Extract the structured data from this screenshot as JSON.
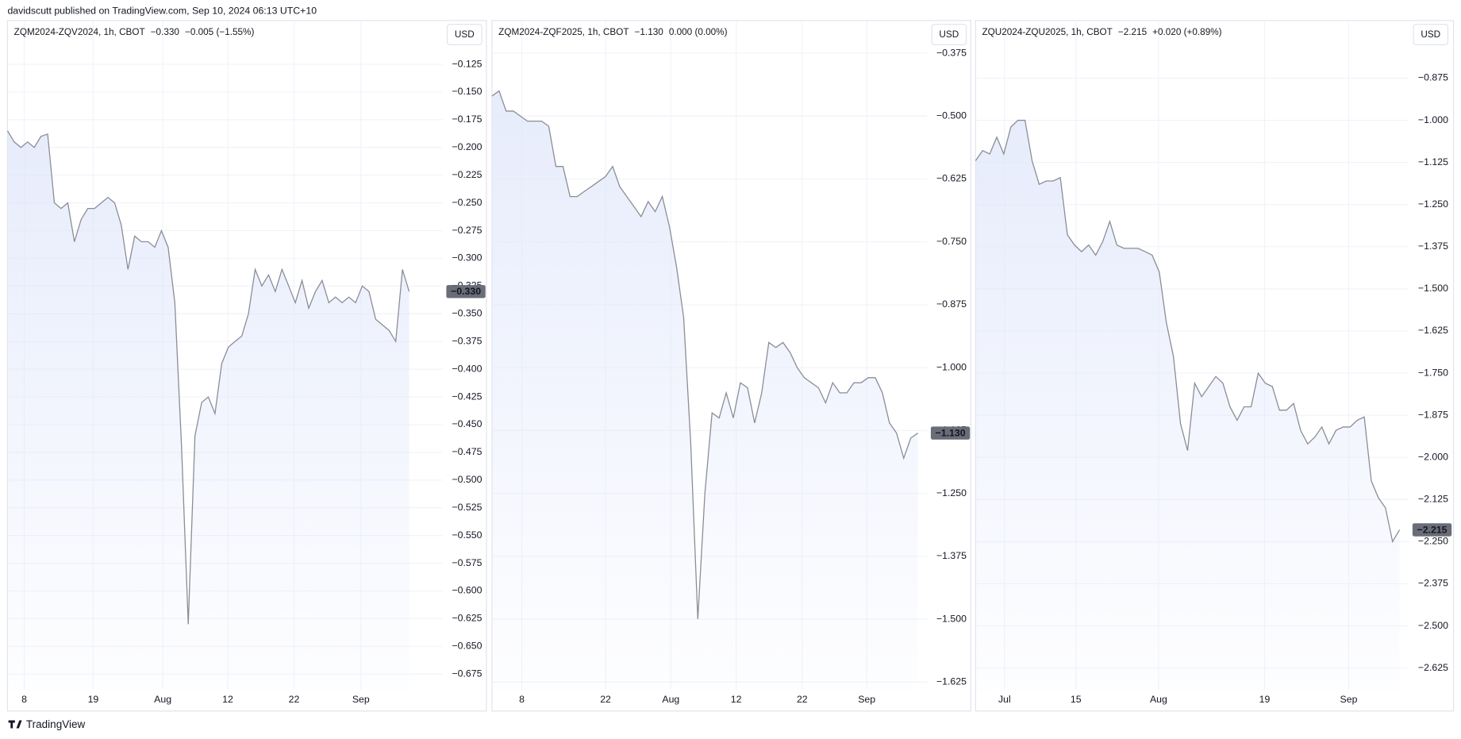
{
  "header": "davidscutt published on TradingView.com, Sep 10, 2024 06:13 UTC+10",
  "footer": "TradingView",
  "chart_data": [
    {
      "type": "area",
      "title": "ZQM2024-ZQV2024, 1h, CBOT",
      "legend_price": "−0.330",
      "legend_change": "−0.005 (−1.55%)",
      "currency": "USD",
      "color": "#8a8d96",
      "fill_color": "#dfe6fb",
      "grid": true,
      "price_badge": {
        "value": -0.33,
        "label": "−0.330"
      },
      "xlim": [
        0,
        65
      ],
      "xticks": [
        {
          "value": 2.5,
          "label": "8"
        },
        {
          "value": 12.8,
          "label": "19"
        },
        {
          "value": 23.2,
          "label": "Aug"
        },
        {
          "value": 32.9,
          "label": "12"
        },
        {
          "value": 42.8,
          "label": "22"
        },
        {
          "value": 52.8,
          "label": "Sep"
        }
      ],
      "ylim": [
        -0.689,
        -0.0855
      ],
      "yticks": [
        {
          "value": -0.125,
          "label": "−0.125"
        },
        {
          "value": -0.15,
          "label": "−0.150"
        },
        {
          "value": -0.175,
          "label": "−0.175"
        },
        {
          "value": -0.2,
          "label": "−0.200"
        },
        {
          "value": -0.225,
          "label": "−0.225"
        },
        {
          "value": -0.25,
          "label": "−0.250"
        },
        {
          "value": -0.275,
          "label": "−0.275"
        },
        {
          "value": -0.3,
          "label": "−0.300"
        },
        {
          "value": -0.325,
          "label": "−0.325"
        },
        {
          "value": -0.35,
          "label": "−0.350"
        },
        {
          "value": -0.375,
          "label": "−0.375"
        },
        {
          "value": -0.4,
          "label": "−0.400"
        },
        {
          "value": -0.425,
          "label": "−0.425"
        },
        {
          "value": -0.45,
          "label": "−0.450"
        },
        {
          "value": -0.475,
          "label": "−0.475"
        },
        {
          "value": -0.5,
          "label": "−0.500"
        },
        {
          "value": -0.525,
          "label": "−0.525"
        },
        {
          "value": -0.55,
          "label": "−0.550"
        },
        {
          "value": -0.575,
          "label": "−0.575"
        },
        {
          "value": -0.6,
          "label": "−0.600"
        },
        {
          "value": -0.625,
          "label": "−0.625"
        },
        {
          "value": -0.65,
          "label": "−0.650"
        },
        {
          "value": -0.675,
          "label": "−0.675"
        }
      ],
      "values": [
        -0.185,
        -0.195,
        -0.2,
        -0.195,
        -0.2,
        -0.19,
        -0.188,
        -0.25,
        -0.255,
        -0.25,
        -0.285,
        -0.265,
        -0.255,
        -0.255,
        -0.25,
        -0.245,
        -0.25,
        -0.27,
        -0.31,
        -0.28,
        -0.285,
        -0.285,
        -0.29,
        -0.275,
        -0.29,
        -0.34,
        -0.47,
        -0.63,
        -0.46,
        -0.43,
        -0.425,
        -0.44,
        -0.395,
        -0.38,
        -0.375,
        -0.37,
        -0.35,
        -0.31,
        -0.325,
        -0.315,
        -0.33,
        -0.31,
        -0.325,
        -0.34,
        -0.32,
        -0.345,
        -0.33,
        -0.32,
        -0.34,
        -0.335,
        -0.34,
        -0.335,
        -0.34,
        -0.325,
        -0.33,
        -0.355,
        -0.36,
        -0.365,
        -0.375,
        -0.31,
        -0.33
      ]
    },
    {
      "type": "area",
      "title": "ZQM2024-ZQF2025, 1h, CBOT",
      "legend_price": "−1.130",
      "legend_change": "0.000 (0.00%)",
      "currency": "USD",
      "color": "#8a8d96",
      "fill_color": "#dfe6fb",
      "grid": true,
      "price_badge": {
        "value": -1.13,
        "label": "−1.130"
      },
      "xlim": [
        0,
        61.3
      ],
      "xticks": [
        {
          "value": 4.2,
          "label": "8"
        },
        {
          "value": 16.0,
          "label": "22"
        },
        {
          "value": 25.2,
          "label": "Aug"
        },
        {
          "value": 34.4,
          "label": "12"
        },
        {
          "value": 43.7,
          "label": "22"
        },
        {
          "value": 52.8,
          "label": "Sep"
        }
      ],
      "ylim": [
        -1.64,
        -0.31
      ],
      "yticks": [
        {
          "value": -0.375,
          "label": "−0.375"
        },
        {
          "value": -0.5,
          "label": "−0.500"
        },
        {
          "value": -0.625,
          "label": "−0.625"
        },
        {
          "value": -0.75,
          "label": "−0.750"
        },
        {
          "value": -0.875,
          "label": "−0.875"
        },
        {
          "value": -1.0,
          "label": "−1.000"
        },
        {
          "value": -1.125,
          "label": "−1.125"
        },
        {
          "value": -1.25,
          "label": "−1.250"
        },
        {
          "value": -1.375,
          "label": "−1.375"
        },
        {
          "value": -1.5,
          "label": "−1.500"
        },
        {
          "value": -1.625,
          "label": "−1.625"
        }
      ],
      "values": [
        -0.46,
        -0.45,
        -0.49,
        -0.49,
        -0.5,
        -0.51,
        -0.51,
        -0.51,
        -0.52,
        -0.6,
        -0.6,
        -0.66,
        -0.66,
        -0.65,
        -0.64,
        -0.63,
        -0.62,
        -0.6,
        -0.64,
        -0.66,
        -0.68,
        -0.7,
        -0.67,
        -0.69,
        -0.66,
        -0.72,
        -0.8,
        -0.9,
        -1.15,
        -1.5,
        -1.25,
        -1.09,
        -1.1,
        -1.05,
        -1.1,
        -1.03,
        -1.04,
        -1.11,
        -1.05,
        -0.95,
        -0.96,
        -0.95,
        -0.97,
        -1.0,
        -1.02,
        -1.03,
        -1.04,
        -1.07,
        -1.03,
        -1.05,
        -1.05,
        -1.03,
        -1.03,
        -1.02,
        -1.02,
        -1.05,
        -1.11,
        -1.13,
        -1.18,
        -1.14,
        -1.13
      ]
    },
    {
      "type": "area",
      "title": "ZQU2024-ZQU2025, 1h, CBOT",
      "legend_price": "−2.215",
      "legend_change": "+0.020 (+0.89%)",
      "currency": "USD",
      "color": "#8a8d96",
      "fill_color": "#dfe6fb",
      "grid": true,
      "price_badge": {
        "value": -2.215,
        "label": "−2.215"
      },
      "xlim": [
        0,
        61.3
      ],
      "xticks": [
        {
          "value": 4.1,
          "label": "Jul"
        },
        {
          "value": 14.2,
          "label": "15"
        },
        {
          "value": 25.9,
          "label": "Aug"
        },
        {
          "value": 40.9,
          "label": "19"
        },
        {
          "value": 52.8,
          "label": "Sep"
        }
      ],
      "ylim": [
        -2.689,
        -0.704
      ],
      "yticks": [
        {
          "value": -0.875,
          "label": "−0.875"
        },
        {
          "value": -1.0,
          "label": "−1.000"
        },
        {
          "value": -1.125,
          "label": "−1.125"
        },
        {
          "value": -1.25,
          "label": "−1.250"
        },
        {
          "value": -1.375,
          "label": "−1.375"
        },
        {
          "value": -1.5,
          "label": "−1.500"
        },
        {
          "value": -1.625,
          "label": "−1.625"
        },
        {
          "value": -1.75,
          "label": "−1.750"
        },
        {
          "value": -1.875,
          "label": "−1.875"
        },
        {
          "value": -2.0,
          "label": "−2.000"
        },
        {
          "value": -2.125,
          "label": "−2.125"
        },
        {
          "value": -2.25,
          "label": "−2.250"
        },
        {
          "value": -2.375,
          "label": "−2.375"
        },
        {
          "value": -2.5,
          "label": "−2.500"
        },
        {
          "value": -2.625,
          "label": "−2.625"
        }
      ],
      "values": [
        -1.12,
        -1.09,
        -1.1,
        -1.05,
        -1.1,
        -1.02,
        -1.0,
        -1.0,
        -1.12,
        -1.19,
        -1.18,
        -1.18,
        -1.17,
        -1.34,
        -1.37,
        -1.39,
        -1.37,
        -1.4,
        -1.36,
        -1.3,
        -1.37,
        -1.38,
        -1.38,
        -1.38,
        -1.39,
        -1.4,
        -1.45,
        -1.6,
        -1.7,
        -1.9,
        -1.98,
        -1.78,
        -1.82,
        -1.79,
        -1.76,
        -1.78,
        -1.85,
        -1.89,
        -1.85,
        -1.85,
        -1.75,
        -1.78,
        -1.79,
        -1.86,
        -1.86,
        -1.84,
        -1.92,
        -1.96,
        -1.94,
        -1.91,
        -1.96,
        -1.92,
        -1.91,
        -1.91,
        -1.89,
        -1.88,
        -2.07,
        -2.12,
        -2.15,
        -2.25,
        -2.215
      ]
    }
  ]
}
